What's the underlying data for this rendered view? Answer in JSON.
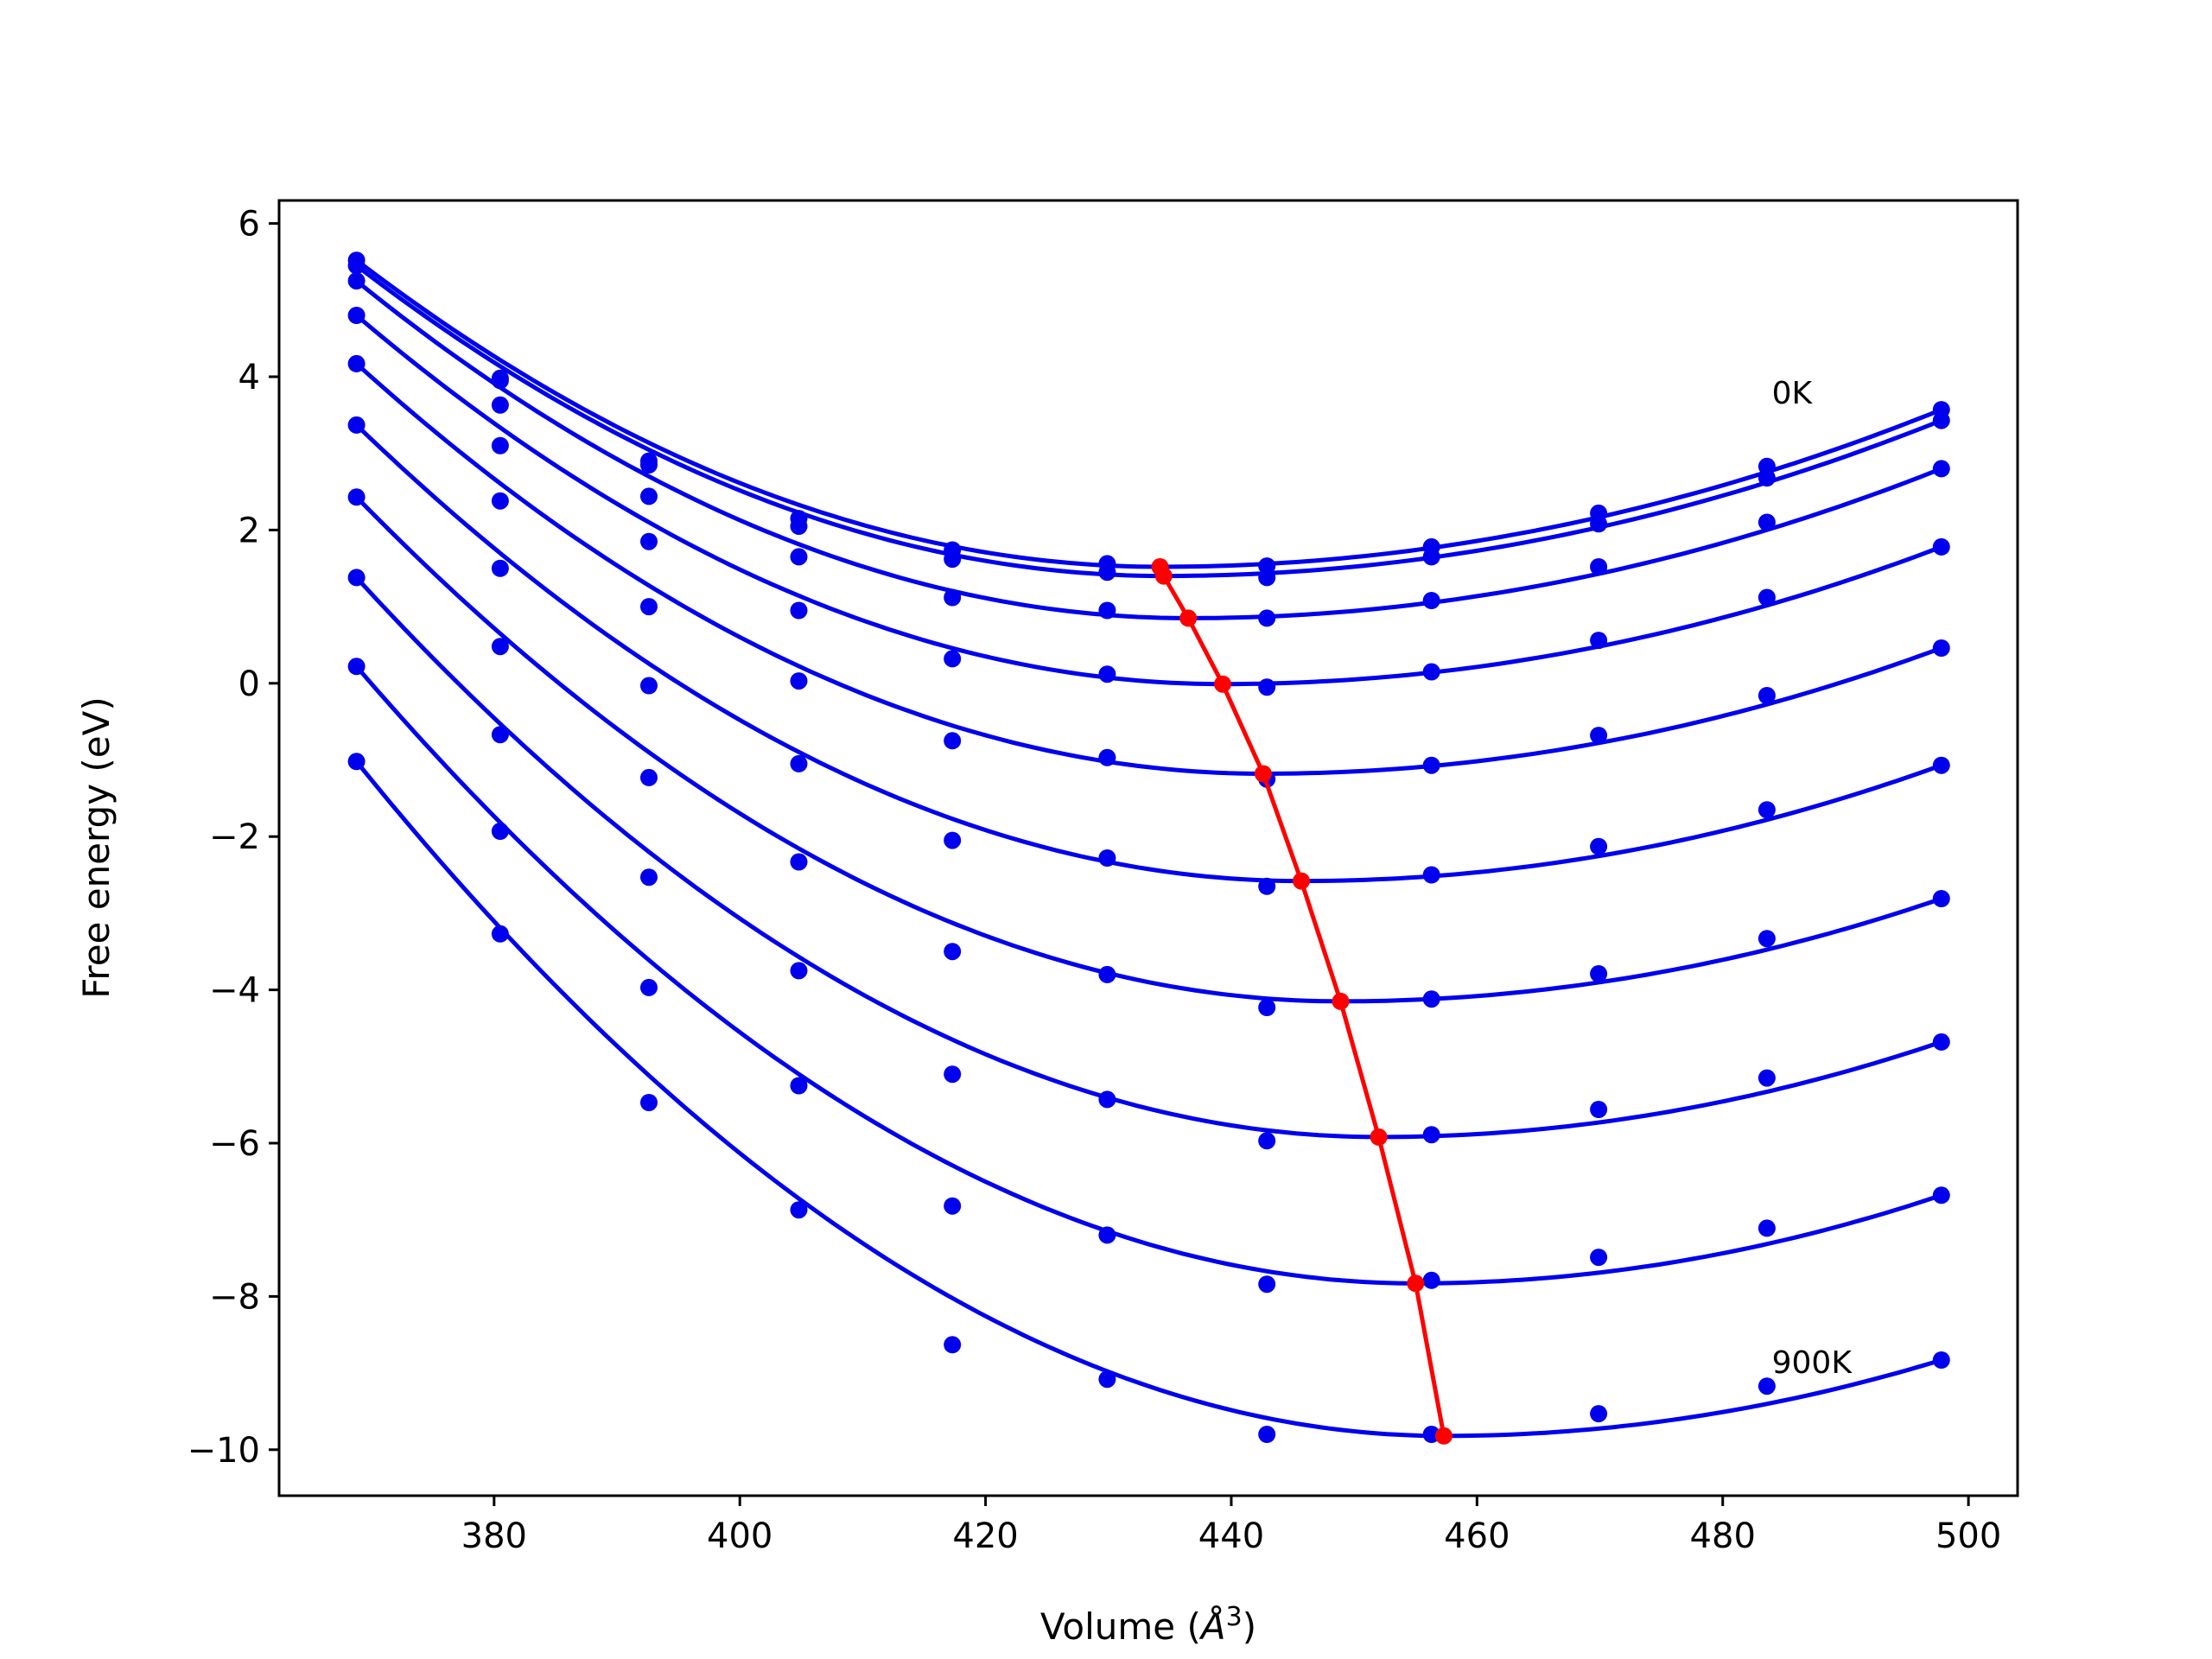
{
  "chart_data": {
    "type": "line",
    "title": "",
    "xlabel": "Volume (",
    "xlabel_unit": "Å",
    "xlabel_exp": "3",
    "xlabel_close": ")",
    "ylabel": "Free energy (eV)",
    "xlim": [
      362.5,
      504
    ],
    "ylim": [
      -10.6,
      6.3
    ],
    "xticks": [
      380,
      400,
      420,
      440,
      460,
      480,
      500
    ],
    "yticks": [
      6,
      4,
      2,
      0,
      -2,
      -4,
      -6,
      -8,
      -10
    ],
    "ytick_labels": [
      "6",
      "4",
      "2",
      "0",
      "−2",
      "−4",
      "−6",
      "−8",
      "−10"
    ],
    "grid": false,
    "colors": {
      "curves": "#0000ee",
      "points": "#0000ee",
      "minimum_line": "#ff0000"
    },
    "annotations": [
      {
        "text": "0K",
        "x": 484,
        "y": 3.65
      },
      {
        "text": "900K",
        "x": 484,
        "y": -9.0
      }
    ],
    "x": [
      368.8,
      380.5,
      392.6,
      404.8,
      417.3,
      429.9,
      442.9,
      456.3,
      469.9,
      483.6,
      497.8
    ],
    "series": [
      {
        "points": [
          5.52,
          3.98,
          2.9,
          2.15,
          1.74,
          1.56,
          1.53,
          1.78,
          2.22,
          2.83,
          3.57
        ],
        "min_v": 434.2,
        "min_f": 1.52
      },
      {
        "points": [
          5.45,
          3.95,
          2.85,
          2.05,
          1.62,
          1.45,
          1.38,
          1.65,
          2.08,
          2.68,
          3.43
        ],
        "min_v": 434.5,
        "min_f": 1.4
      },
      {
        "points": [
          5.25,
          3.63,
          2.44,
          1.65,
          1.12,
          0.95,
          0.85,
          1.08,
          1.52,
          2.1,
          2.8
        ],
        "min_v": 436.5,
        "min_f": 0.85
      },
      {
        "points": [
          4.8,
          3.1,
          1.85,
          0.95,
          0.32,
          0.12,
          -0.05,
          0.15,
          0.56,
          1.12,
          1.78
        ],
        "min_v": 439.3,
        "min_f": -0.01
      },
      {
        "points": [
          4.17,
          2.38,
          1.0,
          0.03,
          -0.75,
          -0.97,
          -1.25,
          -1.07,
          -0.68,
          -0.16,
          0.46
        ],
        "min_v": 442.6,
        "min_f": -1.18
      },
      {
        "points": [
          3.37,
          1.5,
          -0.03,
          -1.05,
          -2.05,
          -2.28,
          -2.65,
          -2.5,
          -2.13,
          -1.65,
          -1.07
        ],
        "min_v": 445.7,
        "min_f": -2.58
      },
      {
        "points": [
          2.43,
          0.48,
          -1.23,
          -2.33,
          -3.5,
          -3.8,
          -4.23,
          -4.12,
          -3.79,
          -3.33,
          -2.81
        ],
        "min_v": 448.9,
        "min_f": -4.15
      },
      {
        "points": [
          1.38,
          -0.67,
          -2.53,
          -3.75,
          -5.1,
          -5.43,
          -5.97,
          -5.89,
          -5.56,
          -5.15,
          -4.68
        ],
        "min_v": 452.0,
        "min_f": -5.92
      },
      {
        "points": [
          0.22,
          -1.93,
          -3.97,
          -5.25,
          -6.82,
          -7.2,
          -7.84,
          -7.79,
          -7.49,
          -7.11,
          -6.68
        ],
        "min_v": 455.0,
        "min_f": -7.83
      },
      {
        "points": [
          -1.02,
          -3.27,
          -5.47,
          -6.87,
          -8.63,
          -9.08,
          -9.8,
          -9.8,
          -9.53,
          -9.17,
          -8.83
        ],
        "min_v": 457.3,
        "min_f": -9.82
      }
    ]
  }
}
